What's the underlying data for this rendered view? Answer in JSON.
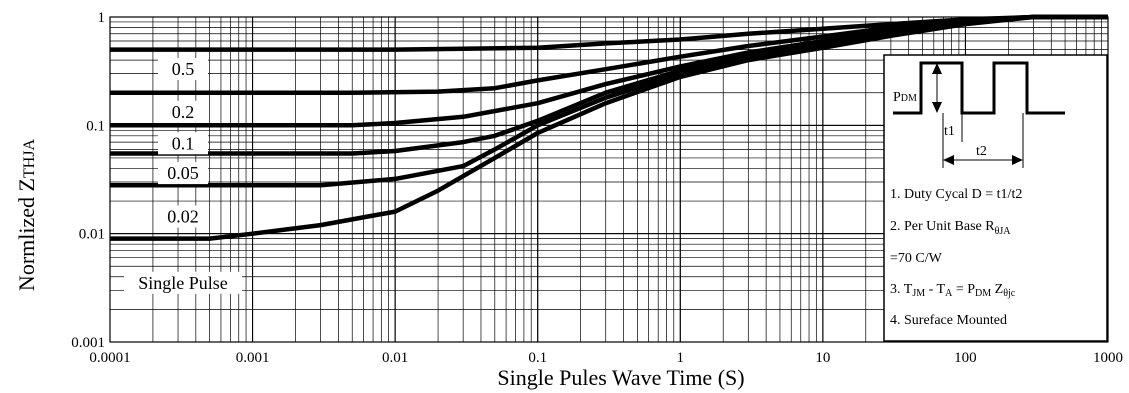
{
  "chart_data": {
    "type": "line",
    "xscale": "log",
    "yscale": "log",
    "xlim": [
      0.0001,
      1000
    ],
    "ylim": [
      0.001,
      1
    ],
    "grid": true,
    "xlabel": "Single Pules Wave Time (S)",
    "ylabel_main": "Normlized Z",
    "ylabel_sub": "THJA",
    "x_ticks": [
      "0.0001",
      "0.001",
      "0.01",
      "0.1",
      "1",
      "10",
      "100",
      "1000"
    ],
    "y_ticks": [
      "0.001",
      "0.01",
      "0.1",
      "1"
    ],
    "series": [
      {
        "name": "0.5",
        "points": [
          [
            0.0001,
            0.5
          ],
          [
            0.01,
            0.5
          ],
          [
            0.03,
            0.51
          ],
          [
            0.1,
            0.52
          ],
          [
            0.3,
            0.57
          ],
          [
            1,
            0.62
          ],
          [
            3,
            0.7
          ],
          [
            10,
            0.78
          ],
          [
            30,
            0.86
          ],
          [
            100,
            0.95
          ],
          [
            300,
            1
          ],
          [
            1000,
            1
          ]
        ]
      },
      {
        "name": "0.2",
        "points": [
          [
            0.0001,
            0.2
          ],
          [
            0.005,
            0.2
          ],
          [
            0.02,
            0.205
          ],
          [
            0.05,
            0.22
          ],
          [
            0.1,
            0.26
          ],
          [
            0.3,
            0.33
          ],
          [
            1,
            0.43
          ],
          [
            3,
            0.54
          ],
          [
            10,
            0.66
          ],
          [
            30,
            0.8
          ],
          [
            100,
            0.93
          ],
          [
            300,
            1
          ],
          [
            1000,
            1
          ]
        ]
      },
      {
        "name": "0.1",
        "points": [
          [
            0.0001,
            0.1
          ],
          [
            0.005,
            0.1
          ],
          [
            0.01,
            0.105
          ],
          [
            0.03,
            0.12
          ],
          [
            0.1,
            0.16
          ],
          [
            0.3,
            0.24
          ],
          [
            1,
            0.35
          ],
          [
            3,
            0.47
          ],
          [
            10,
            0.6
          ],
          [
            30,
            0.76
          ],
          [
            100,
            0.91
          ],
          [
            300,
            1
          ],
          [
            1000,
            1
          ]
        ]
      },
      {
        "name": "0.05",
        "points": [
          [
            0.0001,
            0.055
          ],
          [
            0.005,
            0.055
          ],
          [
            0.01,
            0.058
          ],
          [
            0.03,
            0.07
          ],
          [
            0.05,
            0.08
          ],
          [
            0.1,
            0.11
          ],
          [
            0.3,
            0.2
          ],
          [
            1,
            0.32
          ],
          [
            3,
            0.44
          ],
          [
            10,
            0.58
          ],
          [
            30,
            0.74
          ],
          [
            100,
            0.9
          ],
          [
            300,
            1
          ],
          [
            1000,
            1
          ]
        ]
      },
      {
        "name": "0.02",
        "points": [
          [
            0.0001,
            0.028
          ],
          [
            0.003,
            0.028
          ],
          [
            0.01,
            0.032
          ],
          [
            0.03,
            0.042
          ],
          [
            0.05,
            0.06
          ],
          [
            0.1,
            0.1
          ],
          [
            0.3,
            0.18
          ],
          [
            1,
            0.3
          ],
          [
            3,
            0.42
          ],
          [
            10,
            0.56
          ],
          [
            30,
            0.72
          ],
          [
            100,
            0.89
          ],
          [
            300,
            1
          ],
          [
            1000,
            1
          ]
        ]
      },
      {
        "name": "Single Pulse",
        "points": [
          [
            0.0001,
            0.009
          ],
          [
            0.0005,
            0.009
          ],
          [
            0.001,
            0.01
          ],
          [
            0.003,
            0.012
          ],
          [
            0.01,
            0.016
          ],
          [
            0.02,
            0.025
          ],
          [
            0.05,
            0.05
          ],
          [
            0.1,
            0.085
          ],
          [
            0.3,
            0.16
          ],
          [
            1,
            0.28
          ],
          [
            3,
            0.4
          ],
          [
            10,
            0.52
          ],
          [
            30,
            0.67
          ],
          [
            100,
            0.86
          ],
          [
            300,
            1
          ],
          [
            1000,
            1
          ]
        ]
      }
    ],
    "curve_labels": [
      "0.5",
      "0.2",
      "0.1",
      "0.05",
      "0.02",
      "Single Pulse"
    ],
    "inset": {
      "pdm_label": "P",
      "pdm_sub": "DM",
      "t1_label": "t1",
      "t2_label": "t2",
      "note1": "1. Duty Cycal D = t1/t2",
      "note2_main": "2. Per Unit Base R",
      "note2_sub": "θJA",
      "note2b": "=70 C/W",
      "note3_a": "3. T",
      "note3_a_sub": "JM",
      "note3_b": " - T",
      "note3_b_sub": "A",
      "note3_c": " = P",
      "note3_c_sub": "DM",
      "note3_d": " Z",
      "note3_d_sub": "θjc",
      "note4": "4. Sureface Mounted"
    }
  }
}
